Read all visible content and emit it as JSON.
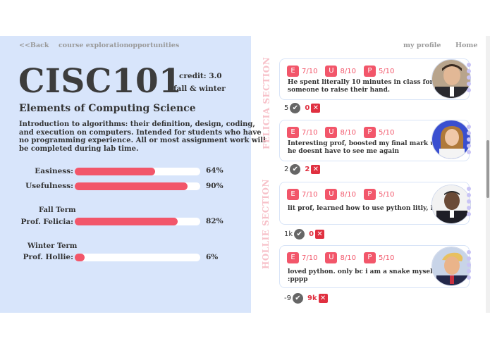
{
  "nav": {
    "back": "<<Back",
    "course_exploration": "course exploration",
    "opportunities": "opportunities",
    "my_profile": "my profile",
    "home": "Home"
  },
  "course": {
    "code": "CISC101",
    "credit": "credit: 3.0",
    "terms": "fall & winter",
    "title": "Elements of Computing Science",
    "description": "Introduction to algorithms: their definition, design, coding, and execution on computers. Intended for students who have no programming experience. All or most assignment work will be completed during lab time."
  },
  "stats": {
    "easiness": {
      "label": "Easiness:",
      "value": 64,
      "display": "64%"
    },
    "usefulness": {
      "label": "Usefulness:",
      "value": 90,
      "display": "90%"
    },
    "fall": {
      "term": "Fall Term",
      "label": "Prof. Felicia:",
      "value": 82,
      "display": "82%"
    },
    "winter": {
      "term": "Winter Term",
      "label": "Prof. Hollie:",
      "value": 6,
      "display": "6%"
    }
  },
  "sections": {
    "felicia": "FELICIA SECTION",
    "hollie": "HOLLIE SECTION"
  },
  "colors": {
    "accent": "#f2566a",
    "panel": "#d8e5fb",
    "section_label": "#f7c1c9"
  },
  "reviews": [
    {
      "e_key": "E",
      "e": "7/10",
      "u_key": "U",
      "u": "8/10",
      "p_key": "P",
      "p": "5/10",
      "text": "He spent literally 10 minutes in class for someone to raise their hand.",
      "up": "5",
      "down": "0"
    },
    {
      "e_key": "E",
      "e": "7/10",
      "u_key": "U",
      "u": "8/10",
      "p_key": "P",
      "p": "5/10",
      "text": "Interesting prof, boosted my final mark up so he doesnt have to see me again",
      "up": "2",
      "down": "2"
    },
    {
      "e_key": "E",
      "e": "7/10",
      "u_key": "U",
      "u": "8/10",
      "p_key": "P",
      "p": "5/10",
      "text": "lit prof, learned how to use python litly, hola",
      "up": "1k",
      "down": "0"
    },
    {
      "e_key": "E",
      "e": "7/10",
      "u_key": "U",
      "u": "8/10",
      "p_key": "P",
      "p": "5/10",
      "text": "loved python. only bc i am a snake myself :pppp",
      "up": "-9",
      "down": "9k"
    }
  ]
}
